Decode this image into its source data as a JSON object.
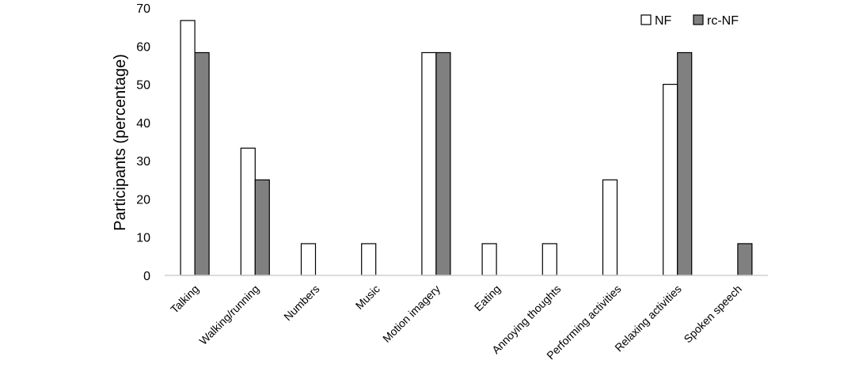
{
  "chart_data": {
    "type": "bar",
    "title": "",
    "xlabel": "",
    "ylabel": "Participants (percentage)",
    "ylim": [
      0,
      70
    ],
    "yticks": [
      0,
      10,
      20,
      30,
      40,
      50,
      60,
      70
    ],
    "grid": false,
    "legend_position": "top-right",
    "categories": [
      "Talking",
      "Walking/running",
      "Numbers",
      "Music",
      "Motion imagery",
      "Eating",
      "Annoying thoughts",
      "Performing activities",
      "Relaxing activities",
      "Spoken speech"
    ],
    "series": [
      {
        "name": "NF",
        "color": "#ffffff",
        "values": [
          66.7,
          33.3,
          8.3,
          8.3,
          58.3,
          8.3,
          8.3,
          25,
          50,
          0
        ]
      },
      {
        "name": "rc-NF",
        "color": "#808080",
        "values": [
          58.3,
          25,
          0,
          0,
          58.3,
          0,
          0,
          0,
          58.3,
          8.3
        ]
      }
    ]
  }
}
